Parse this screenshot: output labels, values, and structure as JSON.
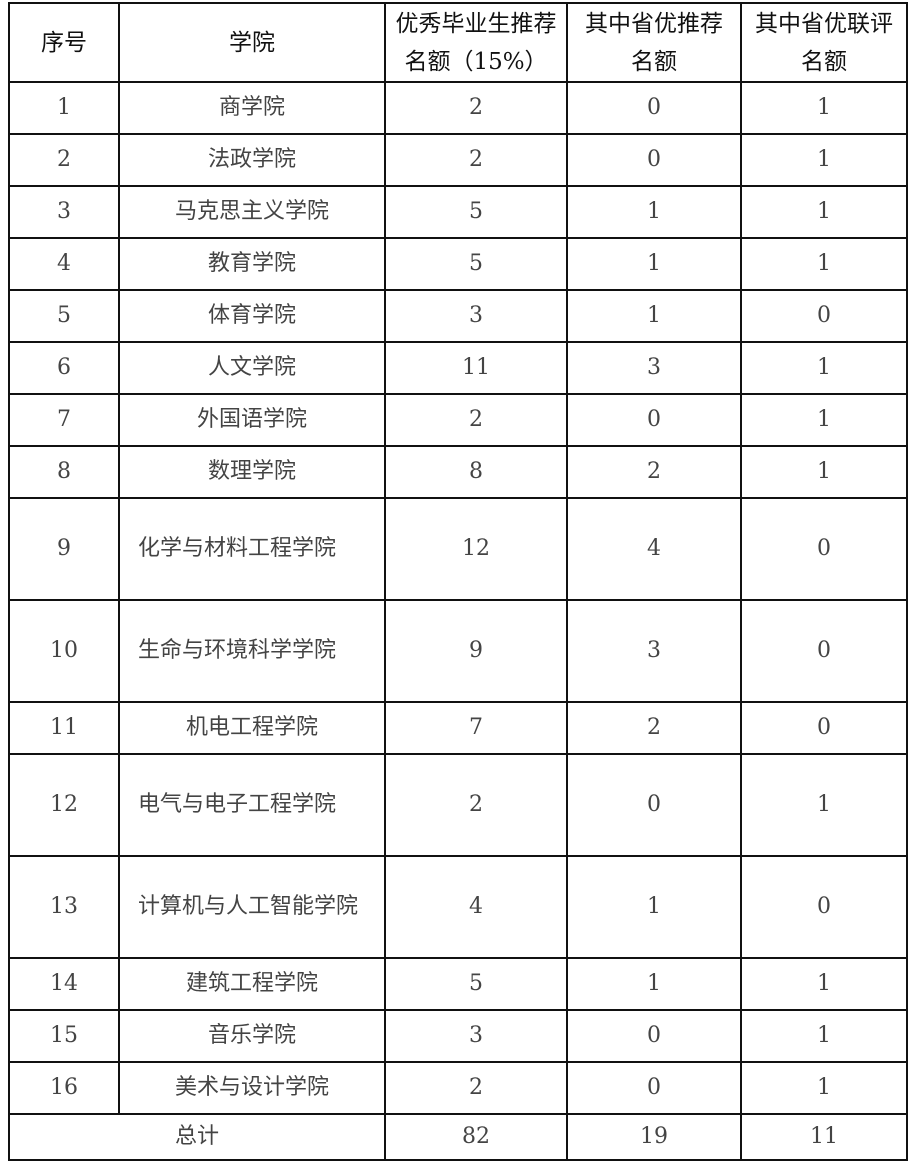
{
  "table": {
    "headers": [
      "序号",
      "学院",
      "优秀毕业生推荐名额（15%）",
      "其中省优推荐名额",
      "其中省优联评名额"
    ],
    "rows": [
      {
        "no": "1",
        "college": "商学院",
        "quota": "2",
        "provincial": "0",
        "joint": "1"
      },
      {
        "no": "2",
        "college": "法政学院",
        "quota": "2",
        "provincial": "0",
        "joint": "1"
      },
      {
        "no": "3",
        "college": "马克思主义学院",
        "quota": "5",
        "provincial": "1",
        "joint": "1"
      },
      {
        "no": "4",
        "college": "教育学院",
        "quota": "5",
        "provincial": "1",
        "joint": "1"
      },
      {
        "no": "5",
        "college": "体育学院",
        "quota": "3",
        "provincial": "1",
        "joint": "0"
      },
      {
        "no": "6",
        "college": "人文学院",
        "quota": "11",
        "provincial": "3",
        "joint": "1"
      },
      {
        "no": "7",
        "college": "外国语学院",
        "quota": "2",
        "provincial": "0",
        "joint": "1"
      },
      {
        "no": "8",
        "college": "数理学院",
        "quota": "8",
        "provincial": "2",
        "joint": "1"
      },
      {
        "no": "9",
        "college": "化学与材料工程学院",
        "quota": "12",
        "provincial": "4",
        "joint": "0"
      },
      {
        "no": "10",
        "college": "生命与环境科学学院",
        "quota": "9",
        "provincial": "3",
        "joint": "0"
      },
      {
        "no": "11",
        "college": "机电工程学院",
        "quota": "7",
        "provincial": "2",
        "joint": "0"
      },
      {
        "no": "12",
        "college": "电气与电子工程学院",
        "quota": "2",
        "provincial": "0",
        "joint": "1"
      },
      {
        "no": "13",
        "college": "计算机与人工智能学院",
        "quota": "4",
        "provincial": "1",
        "joint": "0"
      },
      {
        "no": "14",
        "college": "建筑工程学院",
        "quota": "5",
        "provincial": "1",
        "joint": "1"
      },
      {
        "no": "15",
        "college": "音乐学院",
        "quota": "3",
        "provincial": "0",
        "joint": "1"
      },
      {
        "no": "16",
        "college": "美术与设计学院",
        "quota": "2",
        "provincial": "0",
        "joint": "1"
      }
    ],
    "total": {
      "label": "总计",
      "quota": "82",
      "provincial": "19",
      "joint": "11"
    }
  }
}
